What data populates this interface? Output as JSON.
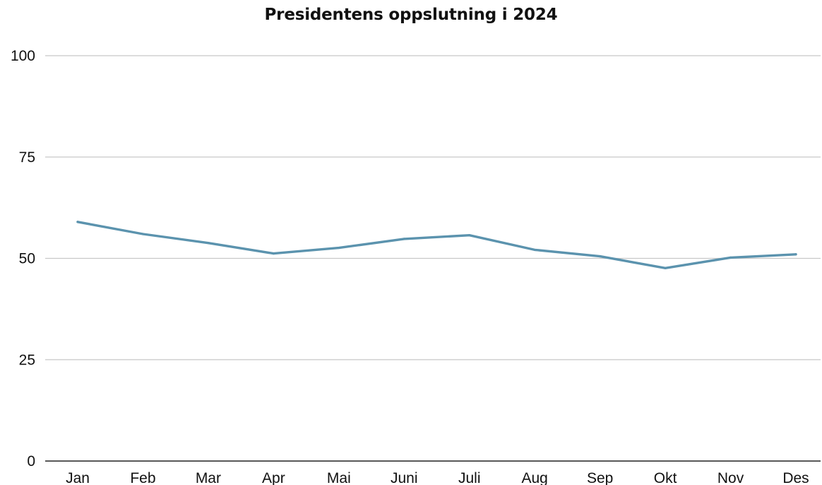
{
  "chart_data": {
    "type": "line",
    "title": "Presidentens oppslutning i 2024",
    "xlabel": "",
    "ylabel": "",
    "categories": [
      "Jan",
      "Feb",
      "Mar",
      "Apr",
      "Mai",
      "Juni",
      "Juli",
      "Aug",
      "Sep",
      "Okt",
      "Nov",
      "Des"
    ],
    "series": [
      {
        "values": [
          59.0,
          56.0,
          53.8,
          51.2,
          52.6,
          54.8,
          55.7,
          52.1,
          50.5,
          47.6,
          50.2,
          51.0
        ],
        "color": "#5b93ae"
      }
    ],
    "ylim": [
      0,
      100
    ],
    "yticks": [
      0,
      25,
      50,
      75,
      100
    ],
    "grid": true,
    "legend": "none"
  }
}
